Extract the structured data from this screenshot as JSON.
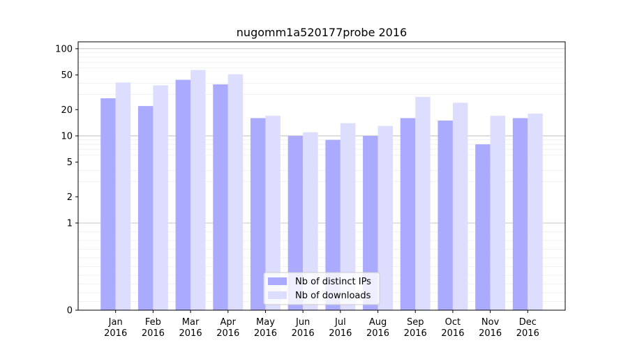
{
  "chart_data": {
    "type": "bar",
    "title": "nugomm1a520177probe 2016",
    "xlabel": "",
    "ylabel": "",
    "yscale": "symlog",
    "ylim": [
      0,
      120
    ],
    "y_ticks": [
      {
        "value": 0,
        "label": "0"
      },
      {
        "value": 1,
        "label": "1"
      },
      {
        "value": 2,
        "label": "2"
      },
      {
        "value": 5,
        "label": "5"
      },
      {
        "value": 10,
        "label": "10"
      },
      {
        "value": 20,
        "label": "20"
      },
      {
        "value": 50,
        "label": "50"
      },
      {
        "value": 100,
        "label": "100"
      }
    ],
    "grid": true,
    "legend_position": "bottom-center",
    "categories": [
      [
        "Jan",
        "2016"
      ],
      [
        "Feb",
        "2016"
      ],
      [
        "Mar",
        "2016"
      ],
      [
        "Apr",
        "2016"
      ],
      [
        "May",
        "2016"
      ],
      [
        "Jun",
        "2016"
      ],
      [
        "Jul",
        "2016"
      ],
      [
        "Aug",
        "2016"
      ],
      [
        "Sep",
        "2016"
      ],
      [
        "Oct",
        "2016"
      ],
      [
        "Nov",
        "2016"
      ],
      [
        "Dec",
        "2016"
      ]
    ],
    "series": [
      {
        "name": "Nb of distinct IPs",
        "color": "#aaaaff",
        "values": [
          27,
          22,
          44,
          39,
          16,
          10,
          9,
          10,
          16,
          15,
          8,
          16
        ]
      },
      {
        "name": "Nb of downloads",
        "color": "#ddddff",
        "values": [
          41,
          38,
          57,
          51,
          17,
          11,
          14,
          13,
          28,
          24,
          17,
          18
        ]
      }
    ]
  }
}
